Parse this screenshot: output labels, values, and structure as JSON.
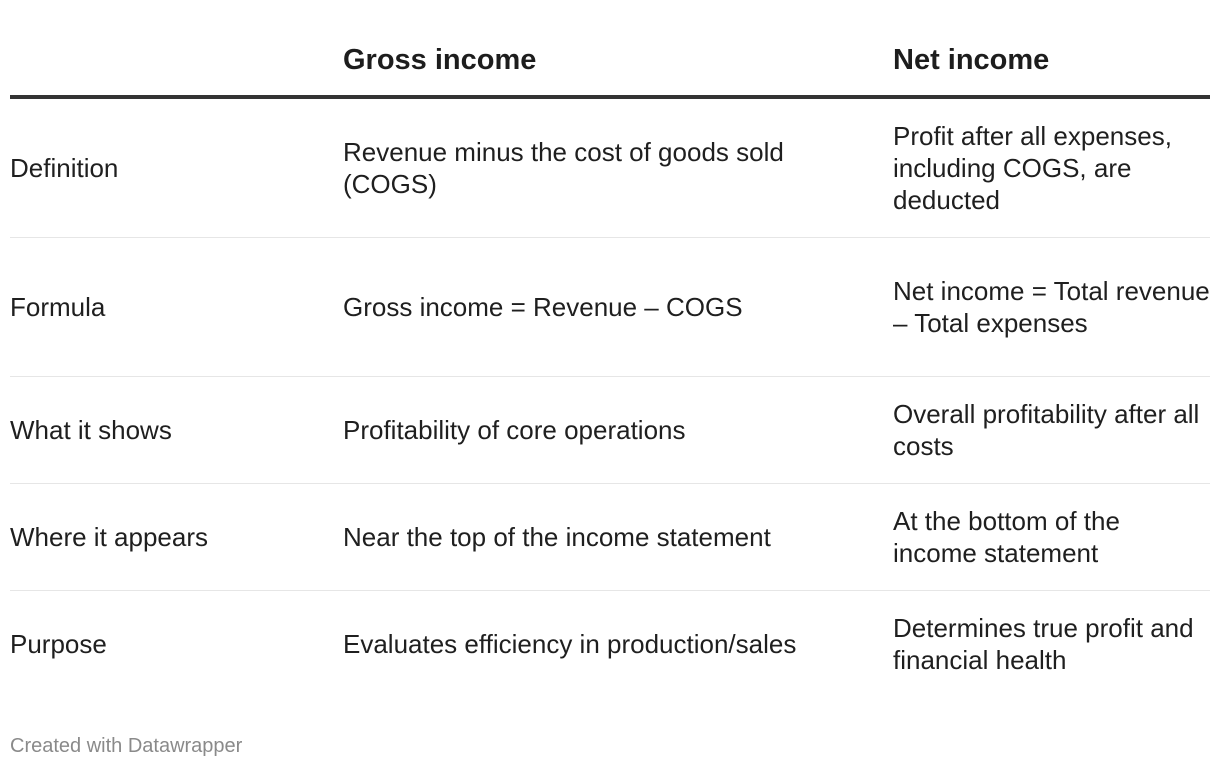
{
  "chart_data": {
    "type": "table",
    "columns": [
      "",
      "Gross income",
      "Net income"
    ],
    "rows": [
      {
        "label": "Definition",
        "gross": "Revenue minus the cost of goods sold (COGS)",
        "net": "Profit after all expenses, including COGS, are deducted"
      },
      {
        "label": "Formula",
        "gross": "Gross income = Revenue – COGS",
        "net": "Net income = Total revenue – Total expenses"
      },
      {
        "label": "What it shows",
        "gross": "Profitability of core operations",
        "net": "Overall profitability after all costs"
      },
      {
        "label": "Where it appears",
        "gross": "Near the top of the income statement",
        "net": "At the bottom of the income statement"
      },
      {
        "label": "Purpose",
        "gross": "Evaluates efficiency in production/sales",
        "net": "Determines true profit and financial health"
      }
    ]
  },
  "footer": {
    "credit": "Created with Datawrapper"
  },
  "colors": {
    "header_rule": "#333333",
    "row_divider": "#e6e6e6",
    "text": "#1f1f1f",
    "footer_text": "#8a8a8a"
  }
}
